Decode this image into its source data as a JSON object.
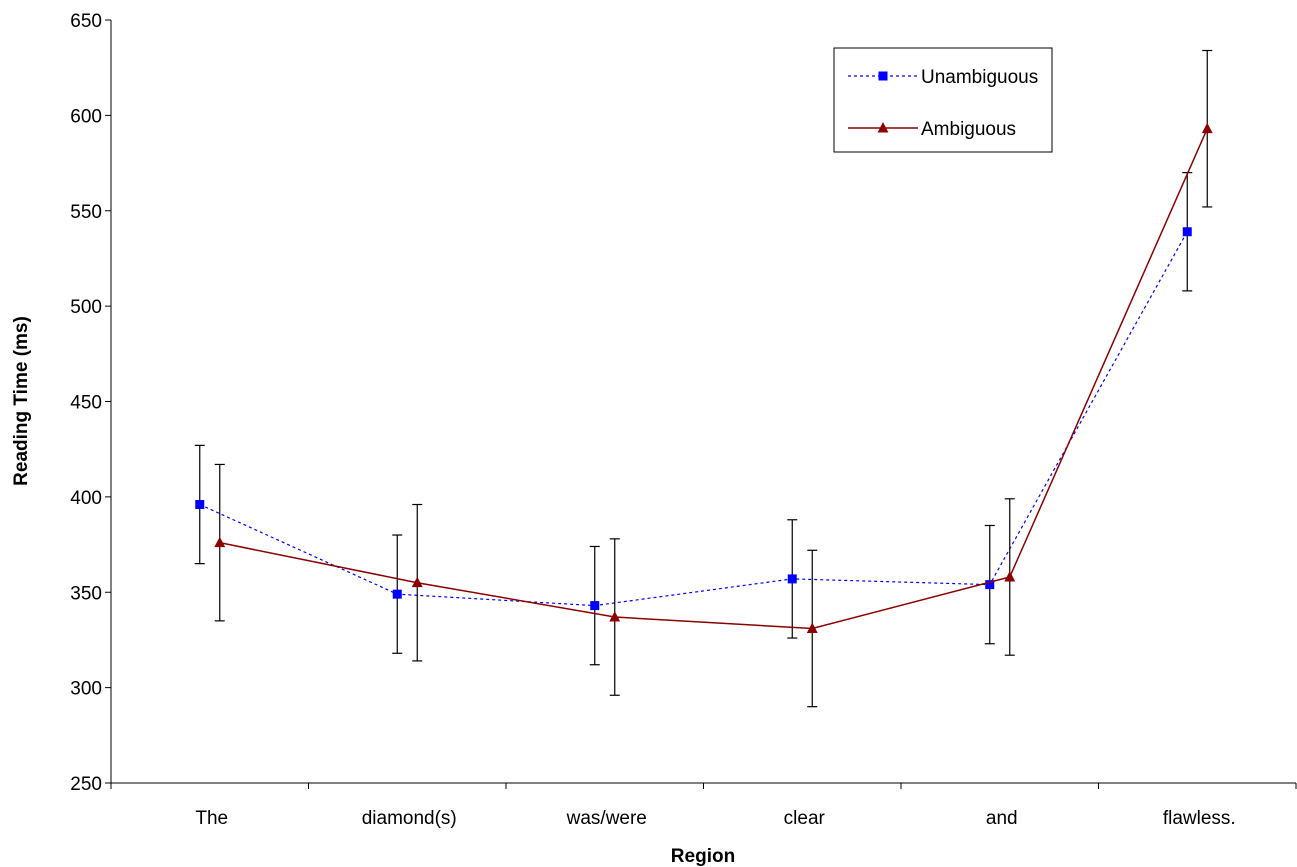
{
  "chart_data": {
    "type": "line",
    "title": "",
    "xlabel": "Region",
    "ylabel": "Reading Time (ms)",
    "categories": [
      "The",
      "diamond(s)",
      "was/were",
      "clear",
      "and",
      "flawless."
    ],
    "ylim": [
      250,
      650
    ],
    "yticks": [
      250,
      300,
      350,
      400,
      450,
      500,
      550,
      600,
      650
    ],
    "grid": false,
    "legend_position": "top-right",
    "series": [
      {
        "name": "Unambiguous",
        "color": "#0000ff",
        "line_style": "dashed",
        "marker": "square",
        "values": [
          396,
          349,
          343,
          357,
          354,
          539
        ],
        "error_low": [
          365,
          318,
          312,
          326,
          323,
          508
        ],
        "error_high": [
          427,
          380,
          374,
          388,
          385,
          570
        ]
      },
      {
        "name": "Ambiguous",
        "color": "#8b0000",
        "line_style": "solid",
        "marker": "triangle",
        "values": [
          376,
          355,
          337,
          331,
          358,
          593
        ],
        "error_low": [
          335,
          314,
          296,
          290,
          317,
          552
        ],
        "error_high": [
          417,
          396,
          378,
          372,
          399,
          634
        ]
      }
    ]
  }
}
